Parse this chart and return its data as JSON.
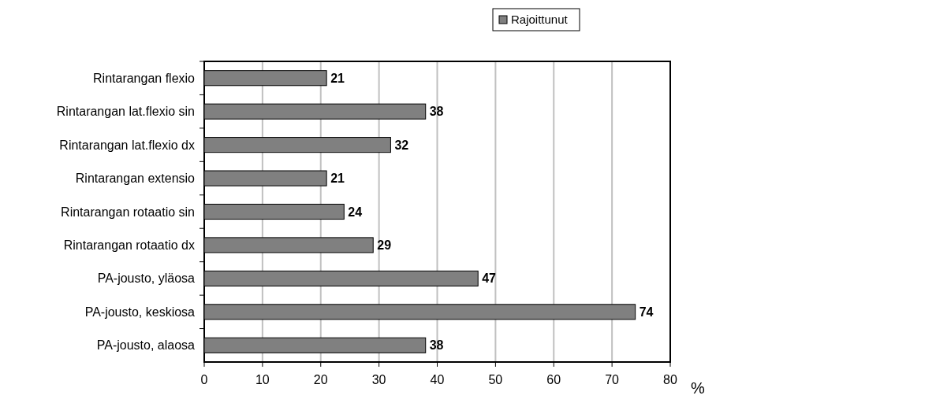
{
  "chart_data": {
    "type": "bar",
    "orientation": "horizontal",
    "categories": [
      "Rintarangan flexio",
      "Rintarangan lat.flexio sin",
      "Rintarangan lat.flexio dx",
      "Rintarangan extensio",
      "Rintarangan rotaatio sin",
      "Rintarangan rotaatio dx",
      "PA-jousto, yläosa",
      "PA-jousto, keskiosa",
      "PA-jousto, alaosa"
    ],
    "series": [
      {
        "name": "Rajoittunut",
        "color": "#808080",
        "values": [
          21,
          38,
          32,
          21,
          24,
          29,
          47,
          74,
          38
        ]
      }
    ],
    "xlim": [
      0,
      80
    ],
    "xticks": [
      0,
      10,
      20,
      30,
      40,
      50,
      60,
      70,
      80
    ],
    "xlabel": "%",
    "grid": "x",
    "legend": "top",
    "data_labels": true
  }
}
